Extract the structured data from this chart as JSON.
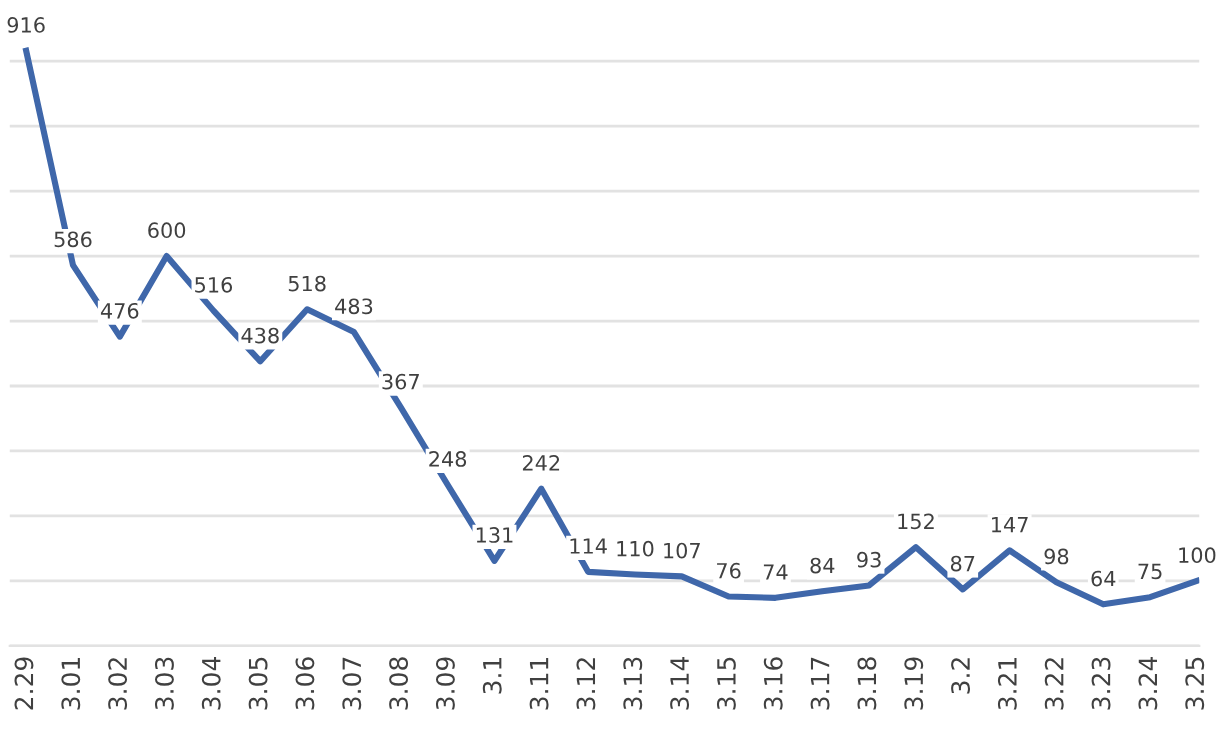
{
  "chart_data": {
    "type": "line",
    "categories": [
      "2.29",
      "3.01",
      "3.02",
      "3.03",
      "3.04",
      "3.05",
      "3.06",
      "3.07",
      "3.08",
      "3.09",
      "3.1",
      "3.11",
      "3.12",
      "3.13",
      "3.14",
      "3.15",
      "3.16",
      "3.17",
      "3.18",
      "3.19",
      "3.2",
      "3.21",
      "3.22",
      "3.23",
      "3.24",
      "3.25"
    ],
    "series": [
      {
        "color": "#3f67aa",
        "values": [
          916,
          586,
          476,
          600,
          516,
          438,
          518,
          483,
          367,
          248,
          131,
          242,
          114,
          110,
          107,
          76,
          74,
          84,
          93,
          152,
          87,
          147,
          98,
          64,
          75,
          100
        ]
      }
    ],
    "yticks": [
      {
        "value": 0,
        "label": null
      },
      {
        "value": 100,
        "label": null
      },
      {
        "value": 200,
        "label": null
      },
      {
        "value": 300,
        "label": null
      },
      {
        "value": 400,
        "label": null
      },
      {
        "value": 500,
        "label": null
      },
      {
        "value": 600,
        "label": null
      },
      {
        "value": 700,
        "label": null
      },
      {
        "value": 800,
        "label": null
      },
      {
        "value": 900,
        "label": null
      }
    ],
    "tick_labels": "x",
    "grid": "y",
    "data_labels": true,
    "marker": "none",
    "line_style": "solid",
    "legend": false
  }
}
